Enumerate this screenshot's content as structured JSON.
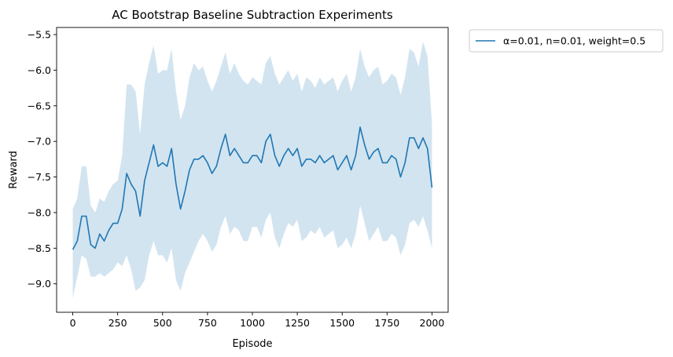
{
  "chart_data": {
    "type": "line",
    "title": "AC Bootstrap Baseline Subtraction Experiments",
    "xlabel": "Episode",
    "ylabel": "Reward",
    "xlim": [
      -90,
      2090
    ],
    "ylim": [
      -9.4,
      -5.4
    ],
    "xticks": [
      0,
      250,
      500,
      750,
      1000,
      1250,
      1500,
      1750,
      2000
    ],
    "yticks": [
      -9.0,
      -8.5,
      -8.0,
      -7.5,
      -7.0,
      -6.5,
      -6.0,
      -5.5
    ],
    "xtick_labels": [
      "0",
      "250",
      "500",
      "750",
      "1000",
      "1250",
      "1500",
      "1750",
      "2000"
    ],
    "ytick_labels": [
      "−9.0",
      "−8.5",
      "−8.0",
      "−7.5",
      "−7.0",
      "−6.5",
      "−6.0",
      "−5.5"
    ],
    "grid": false,
    "legend_position": "outside-upper-right",
    "series": [
      {
        "name": "α=0.01, n=0.01, weight=0.5",
        "color": "#1f77b4",
        "band_color": "#1f77b4",
        "band_opacity": 0.2,
        "x": [
          0,
          25,
          50,
          75,
          100,
          125,
          150,
          175,
          200,
          225,
          250,
          275,
          300,
          325,
          350,
          375,
          400,
          425,
          450,
          475,
          500,
          525,
          550,
          575,
          600,
          625,
          650,
          675,
          700,
          725,
          750,
          775,
          800,
          825,
          850,
          875,
          900,
          925,
          950,
          975,
          1000,
          1025,
          1050,
          1075,
          1100,
          1125,
          1150,
          1175,
          1200,
          1225,
          1250,
          1275,
          1300,
          1325,
          1350,
          1375,
          1400,
          1425,
          1450,
          1475,
          1500,
          1525,
          1550,
          1575,
          1600,
          1625,
          1650,
          1675,
          1700,
          1725,
          1750,
          1775,
          1800,
          1825,
          1850,
          1875,
          1900,
          1925,
          1950,
          1975,
          2000
        ],
        "mean": [
          -8.52,
          -8.4,
          -8.05,
          -8.05,
          -8.45,
          -8.5,
          -8.3,
          -8.4,
          -8.25,
          -8.15,
          -8.15,
          -7.95,
          -7.45,
          -7.6,
          -7.7,
          -8.05,
          -7.55,
          -7.3,
          -7.05,
          -7.35,
          -7.3,
          -7.35,
          -7.1,
          -7.6,
          -7.95,
          -7.7,
          -7.4,
          -7.25,
          -7.25,
          -7.2,
          -7.3,
          -7.45,
          -7.35,
          -7.1,
          -6.9,
          -7.2,
          -7.1,
          -7.2,
          -7.3,
          -7.3,
          -7.2,
          -7.2,
          -7.3,
          -7.0,
          -6.9,
          -7.2,
          -7.35,
          -7.2,
          -7.1,
          -7.2,
          -7.1,
          -7.35,
          -7.25,
          -7.25,
          -7.3,
          -7.2,
          -7.3,
          -7.25,
          -7.2,
          -7.4,
          -7.3,
          -7.2,
          -7.4,
          -7.2,
          -6.8,
          -7.05,
          -7.25,
          -7.15,
          -7.1,
          -7.3,
          -7.3,
          -7.2,
          -7.25,
          -7.5,
          -7.3,
          -6.95,
          -6.95,
          -7.1,
          -6.95,
          -7.1,
          -7.65
        ],
        "lower": [
          -9.2,
          -8.9,
          -8.6,
          -8.65,
          -8.9,
          -8.9,
          -8.85,
          -8.9,
          -8.85,
          -8.8,
          -8.7,
          -8.75,
          -8.6,
          -8.8,
          -9.1,
          -9.05,
          -8.95,
          -8.6,
          -8.4,
          -8.6,
          -8.6,
          -8.7,
          -8.5,
          -8.95,
          -9.1,
          -8.85,
          -8.7,
          -8.55,
          -8.4,
          -8.3,
          -8.4,
          -8.55,
          -8.45,
          -8.2,
          -8.05,
          -8.3,
          -8.2,
          -8.25,
          -8.4,
          -8.4,
          -8.2,
          -8.2,
          -8.35,
          -8.1,
          -8.0,
          -8.35,
          -8.5,
          -8.3,
          -8.15,
          -8.2,
          -8.1,
          -8.4,
          -8.35,
          -8.25,
          -8.3,
          -8.2,
          -8.35,
          -8.3,
          -8.25,
          -8.5,
          -8.45,
          -8.35,
          -8.5,
          -8.3,
          -7.9,
          -8.15,
          -8.4,
          -8.3,
          -8.2,
          -8.4,
          -8.4,
          -8.3,
          -8.35,
          -8.6,
          -8.45,
          -8.15,
          -8.1,
          -8.2,
          -8.05,
          -8.25,
          -8.5
        ],
        "upper": [
          -7.95,
          -7.8,
          -7.35,
          -7.35,
          -7.9,
          -8.0,
          -7.8,
          -7.85,
          -7.7,
          -7.6,
          -7.55,
          -7.2,
          -6.2,
          -6.2,
          -6.3,
          -6.9,
          -6.2,
          -5.9,
          -5.65,
          -6.05,
          -6.0,
          -6.0,
          -5.7,
          -6.3,
          -6.7,
          -6.5,
          -6.1,
          -5.9,
          -6.0,
          -5.95,
          -6.15,
          -6.3,
          -6.15,
          -5.95,
          -5.75,
          -6.05,
          -5.9,
          -6.05,
          -6.15,
          -6.2,
          -6.1,
          -6.15,
          -6.2,
          -5.9,
          -5.8,
          -6.05,
          -6.2,
          -6.1,
          -6.0,
          -6.15,
          -6.05,
          -6.3,
          -6.1,
          -6.15,
          -6.25,
          -6.1,
          -6.2,
          -6.15,
          -6.1,
          -6.3,
          -6.15,
          -6.05,
          -6.3,
          -6.1,
          -5.7,
          -5.95,
          -6.1,
          -6.0,
          -5.95,
          -6.2,
          -6.15,
          -6.05,
          -6.1,
          -6.35,
          -6.1,
          -5.7,
          -5.75,
          -5.95,
          -5.6,
          -5.8,
          -6.75
        ]
      }
    ]
  }
}
